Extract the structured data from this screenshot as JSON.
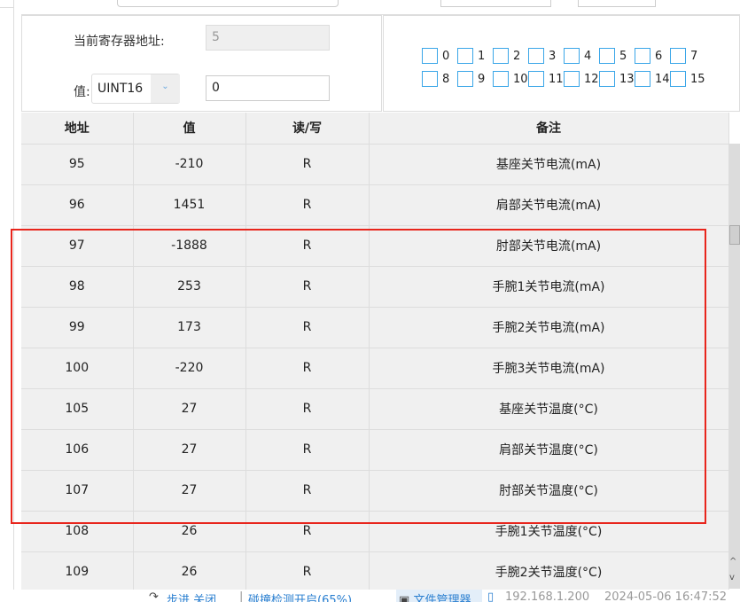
{
  "register": {
    "address_label": "当前寄存器地址:",
    "address_value": "5",
    "value_label": "值:",
    "type_selected": "UINT16",
    "value": "0"
  },
  "bits": [
    "0",
    "1",
    "2",
    "3",
    "4",
    "5",
    "6",
    "7",
    "8",
    "9",
    "10",
    "11",
    "12",
    "13",
    "14",
    "15"
  ],
  "table": {
    "headers": [
      "地址",
      "值",
      "读/写",
      "备注"
    ],
    "rows": [
      [
        "95",
        "-210",
        "R",
        "基座关节电流(mA)"
      ],
      [
        "96",
        "1451",
        "R",
        "肩部关节电流(mA)"
      ],
      [
        "97",
        "-1888",
        "R",
        "肘部关节电流(mA)"
      ],
      [
        "98",
        "253",
        "R",
        "手腕1关节电流(mA)"
      ],
      [
        "99",
        "173",
        "R",
        "手腕2关节电流(mA)"
      ],
      [
        "100",
        "-220",
        "R",
        "手腕3关节电流(mA)"
      ],
      [
        "105",
        "27",
        "R",
        "基座关节温度(°C)"
      ],
      [
        "106",
        "27",
        "R",
        "肩部关节温度(°C)"
      ],
      [
        "107",
        "27",
        "R",
        "肘部关节温度(°C)"
      ],
      [
        "108",
        "26",
        "R",
        "手腕1关节温度(°C)"
      ],
      [
        "109",
        "26",
        "R",
        "手腕2关节温度(°C)"
      ]
    ]
  },
  "status": {
    "step": "步进 关闭",
    "collision": "碰撞检测开启(65%)",
    "file_manager": "文件管理器",
    "ip": "192.168.1.200",
    "datetime": "2024-05-06 16:47:52"
  },
  "colors": {
    "highlight": "#e8251c",
    "checkbox": "#3aa6e8",
    "status_text": "#2a7fd0"
  }
}
